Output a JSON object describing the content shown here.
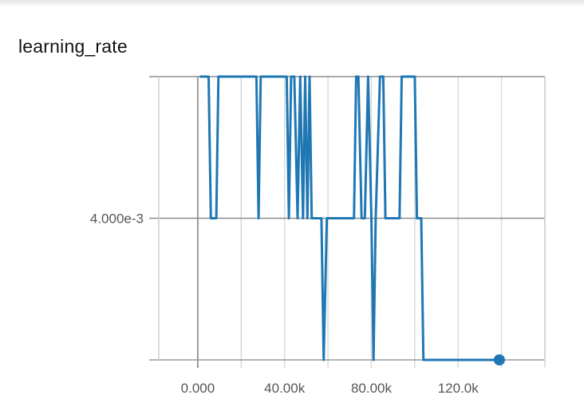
{
  "chart_data": {
    "type": "line",
    "title": "learning_rate",
    "xlabel": "",
    "ylabel": "",
    "xlim": [
      -18000,
      160000
    ],
    "ylim": [
      0,
      0.008
    ],
    "x_ticks": [
      0,
      40000,
      80000,
      120000
    ],
    "x_tick_labels": [
      "0.000",
      "40.00k",
      "80.00k",
      "120.0k"
    ],
    "y_ticks": [
      0.004
    ],
    "y_tick_labels": [
      "4.000e-3"
    ],
    "grid": true,
    "color": "#1f77b4",
    "series": [
      {
        "points": [
          [
            1300,
            0.008
          ],
          [
            3000,
            0.008
          ],
          [
            5000,
            0.008
          ],
          [
            6000,
            0.004
          ],
          [
            7500,
            0.004
          ],
          [
            8500,
            0.004
          ],
          [
            9500,
            0.008
          ],
          [
            13000,
            0.008
          ],
          [
            19000,
            0.008
          ],
          [
            21000,
            0.008
          ],
          [
            25000,
            0.008
          ],
          [
            27000,
            0.008
          ],
          [
            28000,
            0.004
          ],
          [
            29000,
            0.008
          ],
          [
            32000,
            0.008
          ],
          [
            34000,
            0.008
          ],
          [
            41000,
            0.008
          ],
          [
            42000,
            0.004
          ],
          [
            43000,
            0.008
          ],
          [
            44500,
            0.008
          ],
          [
            46000,
            0.004
          ],
          [
            47200,
            0.008
          ],
          [
            48500,
            0.004
          ],
          [
            49500,
            0.008
          ],
          [
            50500,
            0.004
          ],
          [
            51500,
            0.008
          ],
          [
            52500,
            0.004
          ],
          [
            54000,
            0.004
          ],
          [
            57000,
            0.004
          ],
          [
            58000,
            0.0
          ],
          [
            59500,
            0.004
          ],
          [
            61000,
            0.004
          ],
          [
            64000,
            0.004
          ],
          [
            69000,
            0.004
          ],
          [
            72000,
            0.004
          ],
          [
            73000,
            0.008
          ],
          [
            74000,
            0.008
          ],
          [
            75500,
            0.004
          ],
          [
            77000,
            0.004
          ],
          [
            78500,
            0.008
          ],
          [
            80000,
            0.004
          ],
          [
            81000,
            0.0
          ],
          [
            82000,
            0.004
          ],
          [
            84000,
            0.008
          ],
          [
            85500,
            0.008
          ],
          [
            86500,
            0.004
          ],
          [
            88000,
            0.004
          ],
          [
            93000,
            0.004
          ],
          [
            94000,
            0.008
          ],
          [
            98000,
            0.008
          ],
          [
            100000,
            0.008
          ],
          [
            101000,
            0.004
          ],
          [
            103000,
            0.004
          ],
          [
            104000,
            0.0
          ],
          [
            110000,
            0.0
          ],
          [
            120000,
            0.0
          ],
          [
            130000,
            0.0
          ],
          [
            139000,
            0.0
          ]
        ]
      }
    ]
  }
}
